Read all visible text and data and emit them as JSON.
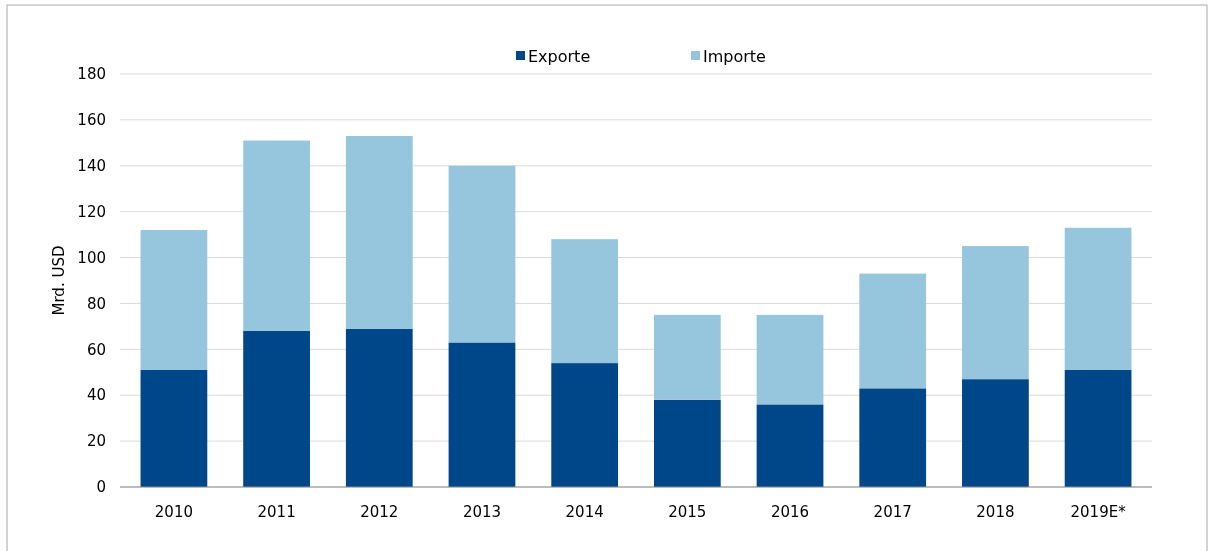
{
  "chart_data": {
    "type": "bar",
    "stacked": true,
    "ylabel": "Mrd. USD",
    "categories": [
      "2010",
      "2011",
      "2012",
      "2013",
      "2014",
      "2015",
      "2016",
      "2017",
      "2018",
      "2019E*"
    ],
    "series": [
      {
        "name": "Exporte",
        "color": "#00478a",
        "values": [
          51,
          68,
          69,
          63,
          54,
          38,
          36,
          43,
          47,
          51
        ]
      },
      {
        "name": "Importe",
        "color": "#95c6de",
        "values": [
          61,
          83,
          84,
          77,
          54,
          37,
          39,
          50,
          58,
          62
        ]
      }
    ],
    "ylim": [
      0,
      180
    ],
    "yticks": [
      0,
      20,
      40,
      60,
      80,
      100,
      120,
      140,
      160,
      180
    ],
    "grid": "y",
    "legend": "top"
  }
}
